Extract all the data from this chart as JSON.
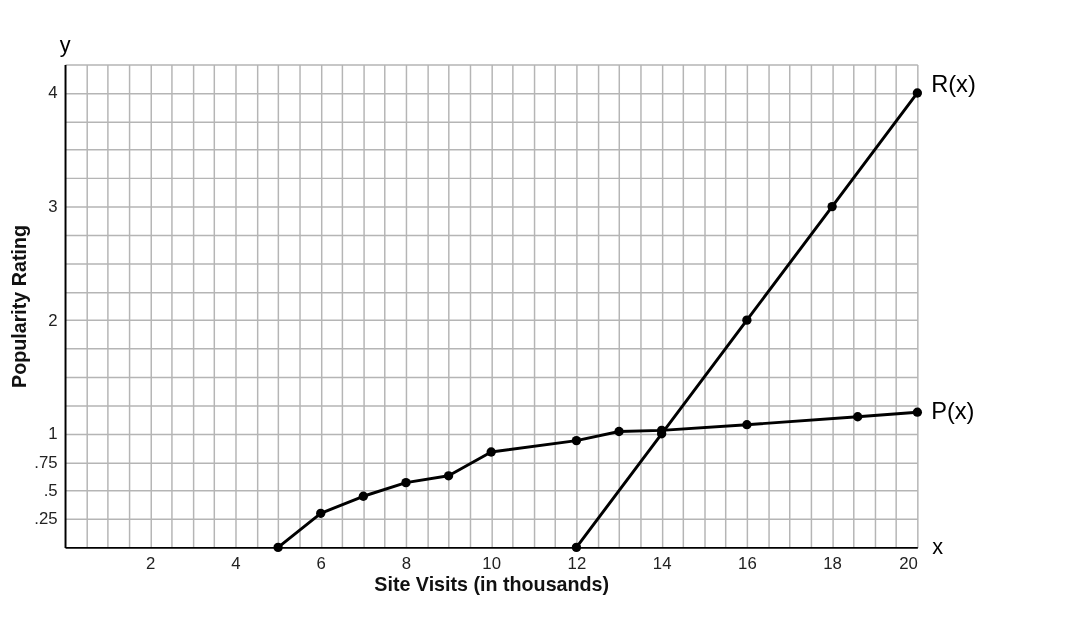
{
  "chart_data": {
    "type": "line",
    "xlabel": "Site Visits (in thousands)",
    "ylabel": "Popularity Rating",
    "annotations": [
      "x",
      "y"
    ],
    "xlim": [
      0,
      20
    ],
    "ylim": [
      0,
      4.25
    ],
    "xticks": [
      {
        "value": 0.5,
        "label": null
      },
      {
        "value": 1,
        "label": null
      },
      {
        "value": 1.5,
        "label": null
      },
      2,
      {
        "value": 2.5,
        "label": null
      },
      {
        "value": 3,
        "label": null
      },
      {
        "value": 3.5,
        "label": null
      },
      4,
      {
        "value": 4.5,
        "label": null
      },
      {
        "value": 5,
        "label": null
      },
      {
        "value": 5.5,
        "label": null
      },
      6,
      {
        "value": 6.5,
        "label": null
      },
      {
        "value": 7,
        "label": null
      },
      {
        "value": 7.5,
        "label": null
      },
      8,
      {
        "value": 8.5,
        "label": null
      },
      {
        "value": 9,
        "label": null
      },
      {
        "value": 9.5,
        "label": null
      },
      10,
      {
        "value": 10.5,
        "label": null
      },
      {
        "value": 11,
        "label": null
      },
      {
        "value": 11.5,
        "label": null
      },
      12,
      {
        "value": 12.5,
        "label": null
      },
      {
        "value": 13,
        "label": null
      },
      {
        "value": 13.5,
        "label": null
      },
      14,
      {
        "value": 14.5,
        "label": null
      },
      {
        "value": 15,
        "label": null
      },
      {
        "value": 15.5,
        "label": null
      },
      16,
      {
        "value": 16.5,
        "label": null
      },
      {
        "value": 17,
        "label": null
      },
      {
        "value": 17.5,
        "label": null
      },
      18,
      {
        "value": 18.5,
        "label": null
      },
      {
        "value": 19,
        "label": null
      },
      {
        "value": 19.5,
        "label": null
      },
      20
    ],
    "yticks": [
      {
        "value": 0.25,
        "label": ".25"
      },
      {
        "value": 0.5,
        "label": ".5"
      },
      {
        "value": 0.75,
        "label": ".75"
      },
      1,
      {
        "value": 1.25,
        "label": null
      },
      {
        "value": 1.5,
        "label": null
      },
      {
        "value": 1.75,
        "label": null
      },
      2,
      {
        "value": 2.25,
        "label": null
      },
      {
        "value": 2.5,
        "label": null
      },
      {
        "value": 2.75,
        "label": null
      },
      3,
      {
        "value": 3.25,
        "label": null
      },
      {
        "value": 3.5,
        "label": null
      },
      {
        "value": 3.75,
        "label": null
      },
      4,
      {
        "value": 4.25,
        "label": null
      }
    ],
    "grid": true,
    "legend": false,
    "marker": "circle",
    "line_style": "solid",
    "series": [
      {
        "name": "R(x)",
        "color": "#000000",
        "x": [
          12,
          14,
          16,
          18,
          20
        ],
        "values": [
          0,
          1,
          2,
          3,
          4
        ]
      },
      {
        "name": "P(x)",
        "color": "#000000",
        "x": [
          5,
          6,
          7,
          8,
          9,
          10,
          12,
          13,
          14,
          16,
          18.6,
          20
        ],
        "values": [
          0,
          0.3,
          0.45,
          0.57,
          0.63,
          0.84,
          0.94,
          1.02,
          1.03,
          1.08,
          1.15,
          1.19
        ]
      }
    ]
  }
}
